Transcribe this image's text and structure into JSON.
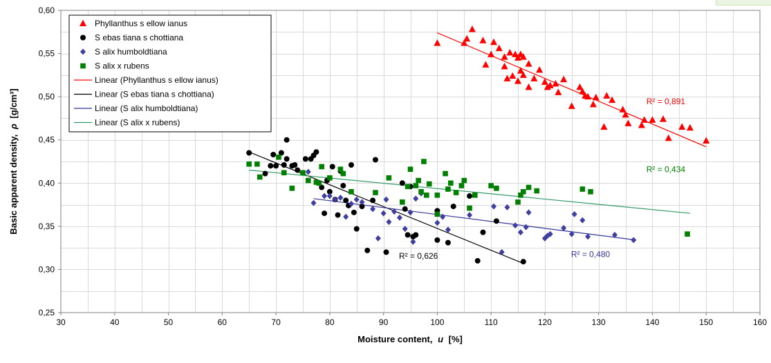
{
  "colors": {
    "phyllanthus": "#ff0000",
    "sebastiana": "#000000",
    "salix_humboldtiana": "#333399",
    "salix_rubens": "#008000",
    "salix_humboldtiana_marker": "#3f3f9f"
  },
  "chart_data": {
    "type": "scatter",
    "title": "",
    "xlabel_text": "Moisture content,",
    "xlabel_symbol": "u",
    "xlabel_unit": "[%]",
    "ylabel_text": "Basic apparent density,",
    "ylabel_symbol": "ρ",
    "ylabel_unit": "[g/cm³]",
    "xlim": [
      30,
      160
    ],
    "ylim": [
      0.25,
      0.6
    ],
    "x_ticks": [
      30,
      40,
      50,
      60,
      70,
      80,
      90,
      100,
      110,
      120,
      130,
      140,
      150,
      160
    ],
    "y_ticks": [
      0.25,
      0.3,
      0.35,
      0.4,
      0.45,
      0.5,
      0.55,
      0.6
    ],
    "x_tick_labels": [
      "30",
      "40",
      "50",
      "60",
      "70",
      "80",
      "90",
      "100",
      "110",
      "120",
      "130",
      "140",
      "150",
      "160"
    ],
    "y_tick_labels": [
      "0,25",
      "0,30",
      "0,35",
      "0,40",
      "0,45",
      "0,50",
      "0,55",
      "0,60"
    ],
    "x_minor_step": 5,
    "y_minor_step": 0.025,
    "grid": true,
    "legend_position": "top-left",
    "series": [
      {
        "name": "Phyllanthus sellowianus",
        "label": "Phyllanthus s ellow ianus",
        "marker": "triangle",
        "color": "#ff0000",
        "points": [
          [
            100,
            0.562
          ],
          [
            105,
            0.562
          ],
          [
            105.5,
            0.567
          ],
          [
            106.5,
            0.578
          ],
          [
            108.5,
            0.565
          ],
          [
            109,
            0.537
          ],
          [
            110,
            0.549
          ],
          [
            110.5,
            0.563
          ],
          [
            111.5,
            0.556
          ],
          [
            112.5,
            0.546
          ],
          [
            112.5,
            0.535
          ],
          [
            113,
            0.521
          ],
          [
            113.5,
            0.551
          ],
          [
            114,
            0.524
          ],
          [
            114.5,
            0.549
          ],
          [
            115,
            0.545
          ],
          [
            115,
            0.518
          ],
          [
            115.5,
            0.549
          ],
          [
            115.5,
            0.53
          ],
          [
            116,
            0.546
          ],
          [
            116,
            0.525
          ],
          [
            117,
            0.511
          ],
          [
            117,
            0.538
          ],
          [
            118,
            0.521
          ],
          [
            119,
            0.531
          ],
          [
            120,
            0.517
          ],
          [
            120.5,
            0.511
          ],
          [
            121,
            0.513
          ],
          [
            122,
            0.515
          ],
          [
            122.5,
            0.505
          ],
          [
            123.5,
            0.52
          ],
          [
            125,
            0.489
          ],
          [
            126.5,
            0.511
          ],
          [
            127,
            0.506
          ],
          [
            127.5,
            0.501
          ],
          [
            128,
            0.5
          ],
          [
            129,
            0.491
          ],
          [
            129.5,
            0.499
          ],
          [
            131,
            0.465
          ],
          [
            131.5,
            0.501
          ],
          [
            132.5,
            0.496
          ],
          [
            134.5,
            0.485
          ],
          [
            135.5,
            0.469
          ],
          [
            135,
            0.479
          ],
          [
            138,
            0.467
          ],
          [
            138.5,
            0.473
          ],
          [
            140,
            0.473
          ],
          [
            142,
            0.474
          ],
          [
            143,
            0.452
          ],
          [
            145.5,
            0.465
          ],
          [
            147,
            0.464
          ],
          [
            150,
            0.449
          ]
        ]
      },
      {
        "name": "Sebastiana schottiana",
        "label": "S ebas tiana s chottiana",
        "marker": "circle",
        "color": "#000000",
        "points": [
          [
            65,
            0.435
          ],
          [
            68,
            0.411
          ],
          [
            69,
            0.42
          ],
          [
            69.5,
            0.433
          ],
          [
            70,
            0.42
          ],
          [
            71,
            0.435
          ],
          [
            71.5,
            0.421
          ],
          [
            72,
            0.45
          ],
          [
            72,
            0.428
          ],
          [
            73,
            0.42
          ],
          [
            73.5,
            0.421
          ],
          [
            74,
            0.415
          ],
          [
            75.5,
            0.428
          ],
          [
            76.5,
            0.428
          ],
          [
            77,
            0.432
          ],
          [
            77.5,
            0.436
          ],
          [
            78.5,
            0.395
          ],
          [
            79,
            0.365
          ],
          [
            79.5,
            0.403
          ],
          [
            80,
            0.39
          ],
          [
            80.5,
            0.419
          ],
          [
            81,
            0.381
          ],
          [
            81.5,
            0.363
          ],
          [
            82,
            0.414
          ],
          [
            82.5,
            0.397
          ],
          [
            83,
            0.38
          ],
          [
            83.5,
            0.374
          ],
          [
            84,
            0.421
          ],
          [
            84.5,
            0.366
          ],
          [
            85,
            0.347
          ],
          [
            86,
            0.373
          ],
          [
            87,
            0.322
          ],
          [
            88,
            0.38
          ],
          [
            88.5,
            0.427
          ],
          [
            90.5,
            0.32
          ],
          [
            93.5,
            0.4
          ],
          [
            94,
            0.37
          ],
          [
            94.5,
            0.34
          ],
          [
            95,
            0.396
          ],
          [
            95.5,
            0.338
          ],
          [
            96,
            0.34
          ],
          [
            100,
            0.334
          ],
          [
            100,
            0.368
          ],
          [
            102,
            0.331
          ],
          [
            103,
            0.373
          ],
          [
            106,
            0.385
          ],
          [
            107.5,
            0.31
          ],
          [
            108.5,
            0.343
          ],
          [
            111,
            0.356
          ],
          [
            116,
            0.309
          ]
        ]
      },
      {
        "name": "Salix humboldtiana",
        "label": "S alix humboldtiana",
        "marker": "diamond",
        "color": "#3f3f9f",
        "points": [
          [
            76,
            0.413
          ],
          [
            77,
            0.377
          ],
          [
            79,
            0.385
          ],
          [
            80,
            0.385
          ],
          [
            81,
            0.381
          ],
          [
            82,
            0.383
          ],
          [
            83,
            0.361
          ],
          [
            84,
            0.376
          ],
          [
            85,
            0.381
          ],
          [
            86,
            0.378
          ],
          [
            88,
            0.37
          ],
          [
            89,
            0.336
          ],
          [
            90,
            0.365
          ],
          [
            90.5,
            0.381
          ],
          [
            91,
            0.355
          ],
          [
            92,
            0.367
          ],
          [
            93,
            0.36
          ],
          [
            94,
            0.347
          ],
          [
            95,
            0.366
          ],
          [
            95.5,
            0.332
          ],
          [
            96,
            0.382
          ],
          [
            97,
            0.388
          ],
          [
            100,
            0.354
          ],
          [
            101,
            0.361
          ],
          [
            102,
            0.346
          ],
          [
            106,
            0.363
          ],
          [
            110.5,
            0.373
          ],
          [
            112,
            0.32
          ],
          [
            113,
            0.372
          ],
          [
            114.5,
            0.351
          ],
          [
            115.5,
            0.343
          ],
          [
            116.5,
            0.349
          ],
          [
            117,
            0.366
          ],
          [
            120,
            0.336
          ],
          [
            120.5,
            0.339
          ],
          [
            121,
            0.341
          ],
          [
            123.5,
            0.348
          ],
          [
            125,
            0.341
          ],
          [
            125.5,
            0.364
          ],
          [
            127,
            0.357
          ],
          [
            128,
            0.338
          ],
          [
            133,
            0.34
          ],
          [
            136.5,
            0.334
          ]
        ]
      },
      {
        "name": "Salix x rubens",
        "label": "S alix x rubens",
        "marker": "square",
        "color": "#008000",
        "points": [
          [
            65,
            0.422
          ],
          [
            66.5,
            0.422
          ],
          [
            67,
            0.407
          ],
          [
            70.5,
            0.43
          ],
          [
            71.5,
            0.412
          ],
          [
            73,
            0.394
          ],
          [
            75,
            0.412
          ],
          [
            76,
            0.403
          ],
          [
            77.5,
            0.401
          ],
          [
            78,
            0.4
          ],
          [
            78.5,
            0.419
          ],
          [
            80,
            0.406
          ],
          [
            82,
            0.416
          ],
          [
            82.5,
            0.411
          ],
          [
            84,
            0.39
          ],
          [
            88.5,
            0.389
          ],
          [
            91,
            0.406
          ],
          [
            93.5,
            0.378
          ],
          [
            94.5,
            0.396
          ],
          [
            95,
            0.416
          ],
          [
            96,
            0.397
          ],
          [
            96.5,
            0.403
          ],
          [
            97,
            0.39
          ],
          [
            97.5,
            0.425
          ],
          [
            98,
            0.386
          ],
          [
            98.5,
            0.399
          ],
          [
            100,
            0.364
          ],
          [
            100,
            0.386
          ],
          [
            101.5,
            0.411
          ],
          [
            102,
            0.393
          ],
          [
            102.5,
            0.4
          ],
          [
            103.5,
            0.389
          ],
          [
            104.5,
            0.397
          ],
          [
            105,
            0.403
          ],
          [
            106,
            0.371
          ],
          [
            107,
            0.386
          ],
          [
            110,
            0.397
          ],
          [
            111,
            0.394
          ],
          [
            115,
            0.378
          ],
          [
            115.5,
            0.386
          ],
          [
            116,
            0.39
          ],
          [
            117,
            0.395
          ],
          [
            118.5,
            0.391
          ],
          [
            127,
            0.393
          ],
          [
            128.5,
            0.39
          ],
          [
            146.5,
            0.341
          ]
        ]
      }
    ],
    "trendlines": [
      {
        "name": "Linear (Phyllanthus sellowianus)",
        "label": "Linear (Phyllanthus s ellow ianus)",
        "color": "#ff0000",
        "x": [
          100,
          150
        ],
        "y": [
          0.574,
          0.442
        ]
      },
      {
        "name": "Linear (Sebastiana schottiana)",
        "label": "Linear (S ebas tiana s chottiana)",
        "color": "#000000",
        "x": [
          65,
          116
        ],
        "y": [
          0.436,
          0.307
        ]
      },
      {
        "name": "Linear (Salix humboldtiana)",
        "label": "Linear (S alix humboldtiana)",
        "color": "#333399",
        "x": [
          77,
          137
        ],
        "y": [
          0.382,
          0.334
        ]
      },
      {
        "name": "Linear (Salix x rubens)",
        "label": "Linear (S alix x rubens)",
        "color": "#339966",
        "x": [
          65,
          147
        ],
        "y": [
          0.415,
          0.365
        ]
      }
    ],
    "annotations": [
      {
        "text": "R² = 0,891",
        "x": 142.5,
        "y": 0.4915,
        "color": "#ff0000"
      },
      {
        "text": "R² = 0,434",
        "x": 142.5,
        "y": 0.4125,
        "color": "#008000"
      },
      {
        "text": "R² = 0,626",
        "x": 96.5,
        "y": 0.3125,
        "color": "#000000"
      },
      {
        "text": "R² = 0,480",
        "x": 128.5,
        "y": 0.3145,
        "color": "#333399"
      }
    ]
  }
}
